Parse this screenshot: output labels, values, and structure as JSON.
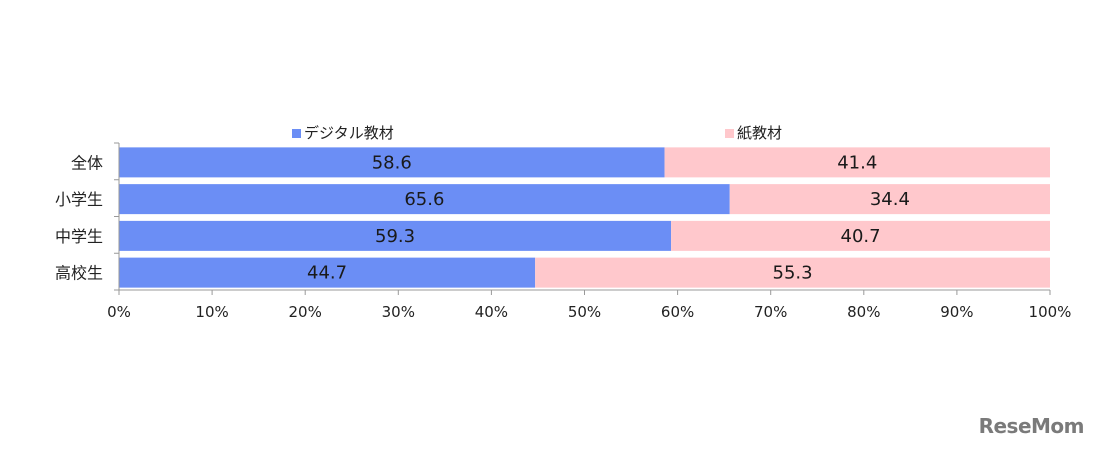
{
  "chart_data": {
    "type": "bar",
    "orientation": "horizontal",
    "stacked": true,
    "categories": [
      "全体",
      "小学生",
      "中学生",
      "高校生"
    ],
    "series": [
      {
        "name": "デジタル教材",
        "values": [
          58.6,
          65.6,
          59.3,
          44.7
        ],
        "color": "#6b8ef5"
      },
      {
        "name": "紙教材",
        "values": [
          41.4,
          34.4,
          40.7,
          55.3
        ],
        "color": "#ffc8cc"
      }
    ],
    "xlim": [
      0,
      100
    ],
    "xticks": [
      "0%",
      "10%",
      "20%",
      "30%",
      "40%",
      "50%",
      "60%",
      "70%",
      "80%",
      "90%",
      "100%"
    ],
    "legend_position": "top",
    "grid": false
  },
  "watermark": "ReseMom"
}
